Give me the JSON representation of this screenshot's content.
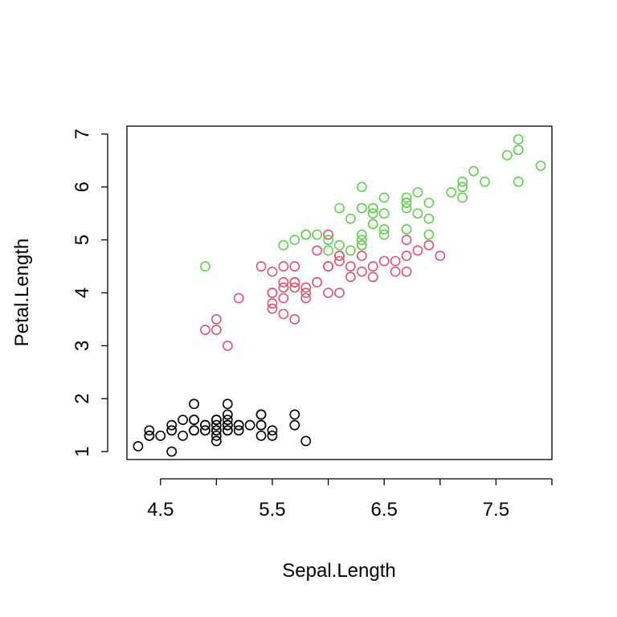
{
  "chart_data": {
    "type": "scatter",
    "title": "",
    "xlabel": "Sepal.Length",
    "ylabel": "Petal.Length",
    "xlim": [
      4.2,
      8.0
    ],
    "ylim": [
      0.85,
      7.15
    ],
    "x_ticks": [
      4.5,
      5.5,
      6.5,
      7.5
    ],
    "x_tick_labels": [
      "4.5",
      "5.5",
      "6.5",
      "7.5"
    ],
    "x_tick_marks": [
      4.5,
      5.0,
      5.5,
      6.0,
      6.5,
      7.0,
      7.5,
      8.0
    ],
    "y_ticks": [
      1,
      2,
      3,
      4,
      5,
      6,
      7
    ],
    "y_tick_labels": [
      "1",
      "2",
      "3",
      "4",
      "5",
      "6",
      "7"
    ],
    "grid": false,
    "legend": "none",
    "series": [
      {
        "color": "#000000",
        "points": [
          [
            5.1,
            1.4
          ],
          [
            4.9,
            1.4
          ],
          [
            4.7,
            1.3
          ],
          [
            4.6,
            1.5
          ],
          [
            5.0,
            1.4
          ],
          [
            5.4,
            1.7
          ],
          [
            4.6,
            1.4
          ],
          [
            5.0,
            1.5
          ],
          [
            4.4,
            1.4
          ],
          [
            4.9,
            1.5
          ],
          [
            5.4,
            1.5
          ],
          [
            4.8,
            1.6
          ],
          [
            4.8,
            1.4
          ],
          [
            4.3,
            1.1
          ],
          [
            5.8,
            1.2
          ],
          [
            5.7,
            1.5
          ],
          [
            5.4,
            1.3
          ],
          [
            5.1,
            1.4
          ],
          [
            5.7,
            1.7
          ],
          [
            5.1,
            1.5
          ],
          [
            5.4,
            1.7
          ],
          [
            5.1,
            1.5
          ],
          [
            4.6,
            1.0
          ],
          [
            5.1,
            1.7
          ],
          [
            4.8,
            1.9
          ],
          [
            5.0,
            1.6
          ],
          [
            5.0,
            1.6
          ],
          [
            5.2,
            1.5
          ],
          [
            5.2,
            1.4
          ],
          [
            4.7,
            1.6
          ],
          [
            4.8,
            1.6
          ],
          [
            5.4,
            1.5
          ],
          [
            5.2,
            1.5
          ],
          [
            5.5,
            1.4
          ],
          [
            4.9,
            1.5
          ],
          [
            5.0,
            1.2
          ],
          [
            5.5,
            1.3
          ],
          [
            4.9,
            1.4
          ],
          [
            4.4,
            1.3
          ],
          [
            5.1,
            1.5
          ],
          [
            5.0,
            1.3
          ],
          [
            4.5,
            1.3
          ],
          [
            4.4,
            1.3
          ],
          [
            5.0,
            1.6
          ],
          [
            5.1,
            1.9
          ],
          [
            4.8,
            1.4
          ],
          [
            5.1,
            1.6
          ],
          [
            4.6,
            1.4
          ],
          [
            5.3,
            1.5
          ],
          [
            5.0,
            1.4
          ]
        ]
      },
      {
        "color": "#DF536B",
        "points": [
          [
            7.0,
            4.7
          ],
          [
            6.4,
            4.5
          ],
          [
            6.9,
            4.9
          ],
          [
            5.5,
            4.0
          ],
          [
            6.5,
            4.6
          ],
          [
            5.7,
            4.5
          ],
          [
            6.3,
            4.7
          ],
          [
            4.9,
            3.3
          ],
          [
            6.6,
            4.6
          ],
          [
            5.2,
            3.9
          ],
          [
            5.0,
            3.5
          ],
          [
            5.9,
            4.2
          ],
          [
            6.0,
            4.0
          ],
          [
            6.1,
            4.7
          ],
          [
            5.6,
            3.6
          ],
          [
            6.7,
            4.4
          ],
          [
            5.6,
            4.5
          ],
          [
            5.8,
            4.1
          ],
          [
            6.2,
            4.5
          ],
          [
            5.6,
            3.9
          ],
          [
            5.9,
            4.8
          ],
          [
            6.1,
            4.0
          ],
          [
            6.3,
            4.9
          ],
          [
            6.1,
            4.7
          ],
          [
            6.4,
            4.3
          ],
          [
            6.6,
            4.4
          ],
          [
            6.8,
            4.8
          ],
          [
            6.7,
            5.0
          ],
          [
            6.0,
            4.5
          ],
          [
            5.7,
            3.5
          ],
          [
            5.5,
            3.8
          ],
          [
            5.5,
            3.7
          ],
          [
            5.8,
            3.9
          ],
          [
            6.0,
            5.1
          ],
          [
            5.4,
            4.5
          ],
          [
            6.0,
            4.5
          ],
          [
            6.7,
            4.7
          ],
          [
            6.3,
            4.4
          ],
          [
            5.6,
            4.1
          ],
          [
            5.5,
            4.0
          ],
          [
            5.5,
            4.4
          ],
          [
            6.1,
            4.6
          ],
          [
            5.8,
            4.0
          ],
          [
            5.0,
            3.3
          ],
          [
            5.6,
            4.2
          ],
          [
            5.7,
            4.2
          ],
          [
            5.7,
            4.2
          ],
          [
            6.2,
            4.3
          ],
          [
            5.1,
            3.0
          ],
          [
            5.7,
            4.1
          ]
        ]
      },
      {
        "color": "#61D04F",
        "points": [
          [
            6.3,
            6.0
          ],
          [
            5.8,
            5.1
          ],
          [
            7.1,
            5.9
          ],
          [
            6.3,
            5.6
          ],
          [
            6.5,
            5.8
          ],
          [
            7.6,
            6.6
          ],
          [
            4.9,
            4.5
          ],
          [
            7.3,
            6.3
          ],
          [
            6.7,
            5.8
          ],
          [
            7.2,
            6.1
          ],
          [
            6.5,
            5.1
          ],
          [
            6.4,
            5.3
          ],
          [
            6.8,
            5.5
          ],
          [
            5.7,
            5.0
          ],
          [
            5.8,
            5.1
          ],
          [
            6.4,
            5.3
          ],
          [
            6.5,
            5.5
          ],
          [
            7.7,
            6.7
          ],
          [
            7.7,
            6.9
          ],
          [
            6.0,
            5.0
          ],
          [
            6.9,
            5.7
          ],
          [
            5.6,
            4.9
          ],
          [
            7.7,
            6.7
          ],
          [
            6.3,
            4.9
          ],
          [
            6.7,
            5.7
          ],
          [
            7.2,
            6.0
          ],
          [
            6.2,
            4.8
          ],
          [
            6.1,
            4.9
          ],
          [
            6.4,
            5.6
          ],
          [
            7.2,
            5.8
          ],
          [
            7.4,
            6.1
          ],
          [
            7.9,
            6.4
          ],
          [
            6.4,
            5.6
          ],
          [
            6.3,
            5.1
          ],
          [
            6.1,
            5.6
          ],
          [
            7.7,
            6.1
          ],
          [
            6.3,
            5.6
          ],
          [
            6.4,
            5.5
          ],
          [
            6.0,
            4.8
          ],
          [
            6.9,
            5.4
          ],
          [
            6.7,
            5.6
          ],
          [
            6.9,
            5.1
          ],
          [
            5.8,
            5.1
          ],
          [
            6.8,
            5.9
          ],
          [
            6.7,
            5.7
          ],
          [
            6.7,
            5.2
          ],
          [
            6.3,
            5.0
          ],
          [
            6.5,
            5.2
          ],
          [
            6.2,
            5.4
          ],
          [
            5.9,
            5.1
          ]
        ]
      }
    ]
  }
}
